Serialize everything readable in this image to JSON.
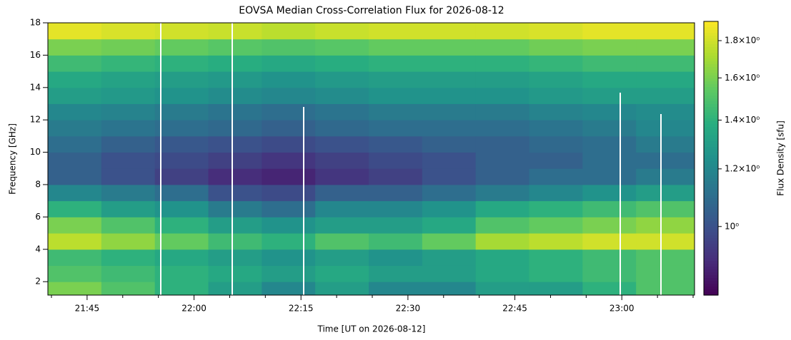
{
  "chart_data": {
    "type": "heatmap",
    "title": "EOVSA Median Cross-Correlation Flux for 2026-08-12",
    "x_label": "Time [UT on 2026-08-12]",
    "y_label": "Frequency [GHz]",
    "colorbar_label": "Flux Density [sfu]",
    "colormap": "viridis",
    "color_scale": "log",
    "xlim": [
      1299.5,
      1390.2
    ],
    "xticks": [
      {
        "value": 1305,
        "label": "21:45"
      },
      {
        "value": 1320,
        "label": "22:00"
      },
      {
        "value": 1335,
        "label": "22:15"
      },
      {
        "value": 1350,
        "label": "22:30"
      },
      {
        "value": 1365,
        "label": "22:45"
      },
      {
        "value": 1380,
        "label": "23:00"
      }
    ],
    "xminorticks": [
      1300,
      1310,
      1315,
      1325,
      1330,
      1340,
      1345,
      1355,
      1360,
      1370,
      1375,
      1385,
      1390
    ],
    "ylim": [
      1.17,
      18
    ],
    "yticks": [
      2,
      4,
      6,
      8,
      10,
      12,
      14,
      16,
      18
    ],
    "clim": [
      0.805,
      1.913
    ],
    "cticks": [
      {
        "value": 1.0,
        "label": "10⁰"
      },
      {
        "value": 1.2,
        "label": "1.2×10⁰"
      },
      {
        "value": 1.4,
        "label": "1.4×10⁰"
      },
      {
        "value": 1.6,
        "label": "1.6×10⁰"
      },
      {
        "value": 1.8,
        "label": "1.8×10⁰"
      }
    ],
    "x_bins": [
      1299.5,
      1307,
      1314.5,
      1322,
      1329.5,
      1337,
      1344.5,
      1352,
      1359.5,
      1367,
      1374.5,
      1382,
      1390.2
    ],
    "y_bins": [
      1,
      2,
      3,
      4,
      5,
      6,
      7,
      8,
      9,
      10,
      11,
      12,
      13,
      14,
      15,
      16,
      17,
      18
    ],
    "z": [
      [
        1.6,
        1.5,
        1.4,
        1.3,
        1.2,
        1.3,
        1.2,
        1.2,
        1.3,
        1.3,
        1.4,
        1.5
      ],
      [
        1.5,
        1.45,
        1.4,
        1.35,
        1.3,
        1.35,
        1.3,
        1.3,
        1.35,
        1.4,
        1.45,
        1.5
      ],
      [
        1.45,
        1.4,
        1.35,
        1.3,
        1.25,
        1.3,
        1.25,
        1.3,
        1.35,
        1.4,
        1.45,
        1.5
      ],
      [
        1.75,
        1.65,
        1.55,
        1.45,
        1.4,
        1.5,
        1.45,
        1.55,
        1.7,
        1.75,
        1.8,
        1.8
      ],
      [
        1.6,
        1.5,
        1.4,
        1.3,
        1.25,
        1.3,
        1.3,
        1.35,
        1.5,
        1.55,
        1.6,
        1.65
      ],
      [
        1.4,
        1.3,
        1.25,
        1.15,
        1.1,
        1.2,
        1.2,
        1.25,
        1.35,
        1.4,
        1.45,
        1.5
      ],
      [
        1.2,
        1.15,
        1.1,
        1.0,
        0.98,
        1.05,
        1.05,
        1.1,
        1.15,
        1.2,
        1.25,
        1.3
      ],
      [
        1.05,
        1.0,
        0.95,
        0.9,
        0.88,
        0.92,
        0.95,
        1.0,
        1.05,
        1.1,
        1.1,
        1.15
      ],
      [
        1.05,
        1.0,
        0.98,
        0.95,
        0.92,
        0.95,
        0.98,
        1.0,
        1.05,
        1.05,
        1.1,
        1.1
      ],
      [
        1.1,
        1.05,
        1.02,
        1.0,
        0.98,
        1.0,
        1.02,
        1.05,
        1.05,
        1.08,
        1.1,
        1.15
      ],
      [
        1.15,
        1.12,
        1.1,
        1.08,
        1.05,
        1.08,
        1.1,
        1.1,
        1.1,
        1.12,
        1.15,
        1.2
      ],
      [
        1.2,
        1.18,
        1.15,
        1.12,
        1.1,
        1.12,
        1.15,
        1.15,
        1.15,
        1.18,
        1.2,
        1.22
      ],
      [
        1.3,
        1.28,
        1.25,
        1.22,
        1.2,
        1.22,
        1.25,
        1.25,
        1.25,
        1.28,
        1.3,
        1.3
      ],
      [
        1.35,
        1.32,
        1.3,
        1.28,
        1.25,
        1.28,
        1.3,
        1.3,
        1.3,
        1.32,
        1.35,
        1.35
      ],
      [
        1.45,
        1.42,
        1.4,
        1.38,
        1.35,
        1.38,
        1.4,
        1.4,
        1.4,
        1.42,
        1.45,
        1.45
      ],
      [
        1.6,
        1.58,
        1.55,
        1.52,
        1.5,
        1.52,
        1.55,
        1.55,
        1.55,
        1.58,
        1.6,
        1.6
      ],
      [
        1.85,
        1.82,
        1.8,
        1.78,
        1.75,
        1.78,
        1.8,
        1.8,
        1.8,
        1.82,
        1.85,
        1.85
      ]
    ]
  }
}
